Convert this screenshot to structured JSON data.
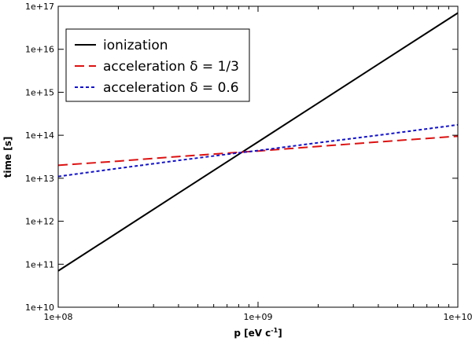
{
  "chart_data": {
    "type": "line",
    "scale": {
      "x": "log",
      "y": "log"
    },
    "xlabel": "p [eV c",
    "xlabel_superscript": "-1",
    "xlabel_suffix": "]",
    "ylabel": "time [s]",
    "xlim": [
      100000000,
      10000000000
    ],
    "ylim": [
      10000000000,
      100000000000000000
    ],
    "x_ticks": [
      {
        "value": 100000000,
        "label": "1e+08"
      },
      {
        "value": 1000000000,
        "label": "1e+09"
      },
      {
        "value": 10000000000,
        "label": "1e+10"
      }
    ],
    "y_ticks": [
      {
        "value": 10000000000,
        "label": "1e+10"
      },
      {
        "value": 100000000000,
        "label": "1e+11"
      },
      {
        "value": 1000000000000,
        "label": "1e+12"
      },
      {
        "value": 10000000000000,
        "label": "1e+13"
      },
      {
        "value": 100000000000000,
        "label": "1e+14"
      },
      {
        "value": 1000000000000000,
        "label": "1e+15"
      },
      {
        "value": 10000000000000000,
        "label": "1e+16"
      },
      {
        "value": 100000000000000000,
        "label": "1e+17"
      }
    ],
    "legend_position": "top-left",
    "series": [
      {
        "name": "ionization",
        "color": "#000000",
        "dash": "solid",
        "x": [
          100000000,
          200000000,
          400000000,
          800000000,
          1000000000,
          2000000000,
          4000000000,
          10000000000
        ],
        "y": [
          70000000000,
          560000000000,
          4500000000000,
          36000000000000,
          70000000000000,
          560000000000000,
          4500000000000000,
          70000000000000000
        ]
      },
      {
        "name": "acceleration δ = 1/3",
        "color": "#dd1111",
        "dash": "long",
        "x": [
          100000000,
          200000000,
          400000000,
          800000000,
          1000000000,
          2000000000,
          4000000000,
          10000000000
        ],
        "y": [
          20000000000000,
          25000000000000,
          32000000000000,
          40000000000000,
          43000000000000,
          55000000000000,
          70000000000000,
          95000000000000
        ]
      },
      {
        "name": "acceleration δ = 0.6",
        "color": "#1111cc",
        "dash": "short",
        "x": [
          100000000,
          200000000,
          400000000,
          800000000,
          1000000000,
          2000000000,
          4000000000,
          10000000000
        ],
        "y": [
          11000000000000,
          17000000000000,
          26000000000000,
          39000000000000,
          44000000000000,
          67000000000000,
          100000000000000,
          175000000000000
        ]
      }
    ]
  }
}
